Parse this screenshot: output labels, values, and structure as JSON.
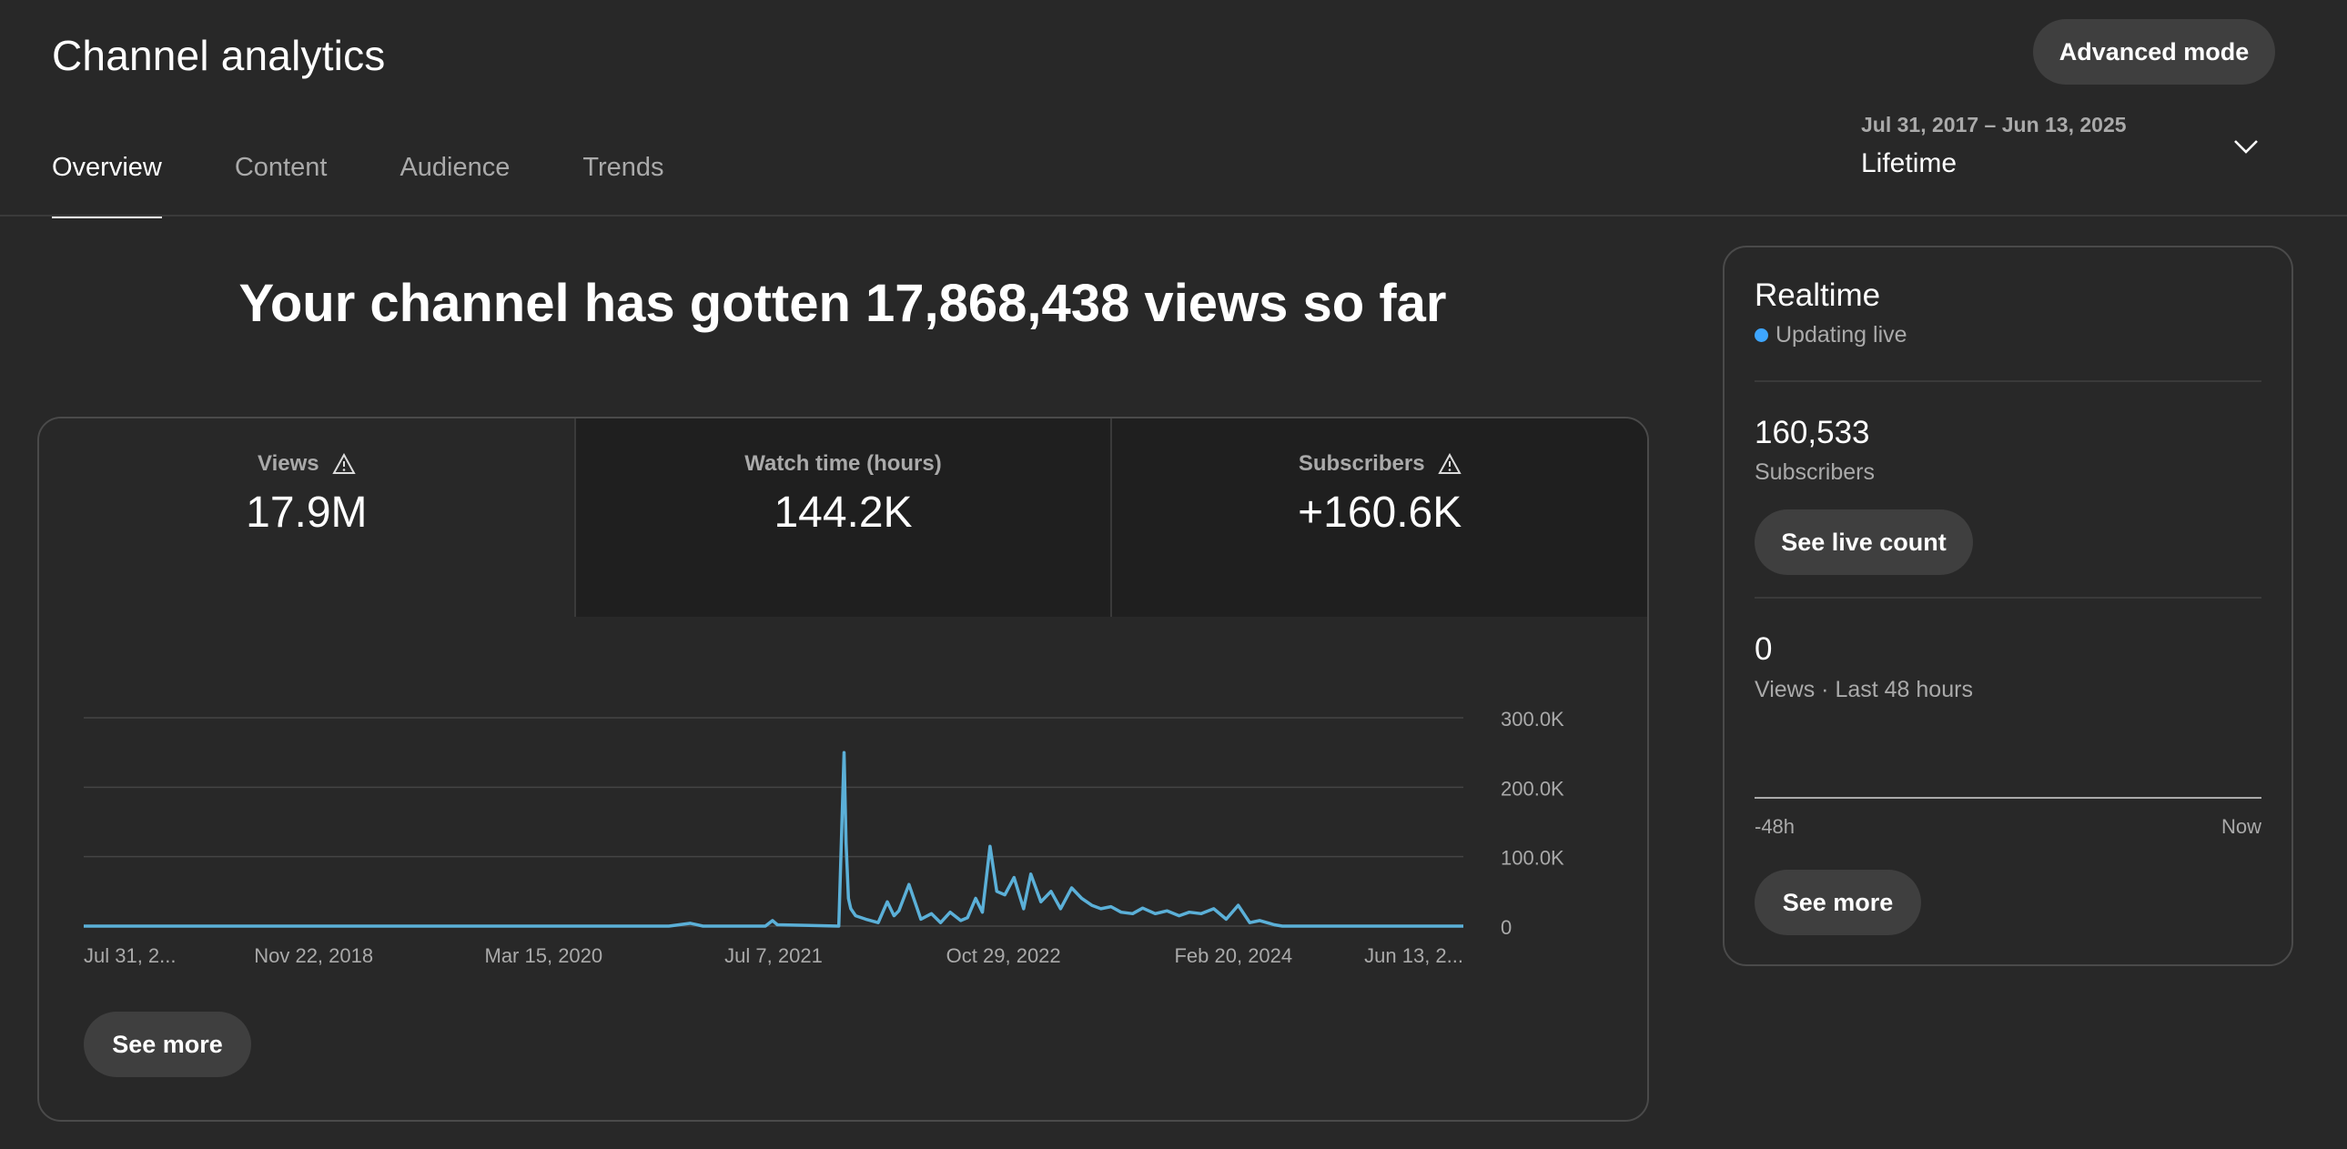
{
  "header": {
    "title": "Channel analytics",
    "advanced_mode": "Advanced mode"
  },
  "tabs": [
    {
      "label": "Overview",
      "active": true
    },
    {
      "label": "Content"
    },
    {
      "label": "Audience"
    },
    {
      "label": "Trends"
    }
  ],
  "date_picker": {
    "range": "Jul 31, 2017 – Jun 13, 2025",
    "label": "Lifetime",
    "icon": "chevron-down-icon"
  },
  "headline": "Your channel has gotten 17,868,438 views so far",
  "metrics": [
    {
      "label": "Views",
      "value": "17.9M",
      "warning": true
    },
    {
      "label": "Watch time (hours)",
      "value": "144.2K",
      "warning": false
    },
    {
      "label": "Subscribers",
      "value": "+160.6K",
      "warning": true
    }
  ],
  "chart_data": {
    "type": "line",
    "series": [
      {
        "color": "#5bb0d8",
        "x": [
          "2017-07-31",
          "2020-12-01",
          "2021-01-15",
          "2021-02-10",
          "2021-06-20",
          "2021-07-05",
          "2021-07-15",
          "2021-11-20",
          "2021-12-01",
          "2021-12-05",
          "2021-12-10",
          "2021-12-15",
          "2021-12-25",
          "2022-01-15",
          "2022-02-10",
          "2022-03-01",
          "2022-03-15",
          "2022-03-25",
          "2022-04-15",
          "2022-05-10",
          "2022-06-01",
          "2022-06-20",
          "2022-07-10",
          "2022-08-01",
          "2022-08-15",
          "2022-09-01",
          "2022-09-15",
          "2022-10-01",
          "2022-10-15",
          "2022-11-01",
          "2022-11-20",
          "2022-12-10",
          "2022-12-25",
          "2023-01-15",
          "2023-02-05",
          "2023-02-25",
          "2023-03-20",
          "2023-04-10",
          "2023-05-01",
          "2023-05-20",
          "2023-06-10",
          "2023-07-01",
          "2023-07-25",
          "2023-08-15",
          "2023-09-10",
          "2023-10-05",
          "2023-10-30",
          "2023-11-20",
          "2023-12-15",
          "2024-01-10",
          "2024-02-05",
          "2024-03-01",
          "2024-03-25",
          "2024-04-15",
          "2024-05-15",
          "2024-06-01",
          "2025-06-13"
        ],
        "values": [
          0,
          0,
          4000,
          0,
          0,
          8000,
          2000,
          0,
          250000,
          120000,
          40000,
          25000,
          15000,
          10000,
          5000,
          35000,
          15000,
          22000,
          60000,
          10000,
          18000,
          5000,
          20000,
          8000,
          12000,
          40000,
          20000,
          115000,
          50000,
          45000,
          70000,
          25000,
          75000,
          35000,
          50000,
          25000,
          55000,
          40000,
          30000,
          25000,
          28000,
          20000,
          18000,
          26000,
          18000,
          22000,
          15000,
          20000,
          18000,
          25000,
          10000,
          30000,
          5000,
          8000,
          2000,
          0,
          0
        ]
      }
    ],
    "x_ticks": [
      "Jul 31, 2...",
      "Nov 22, 2018",
      "Mar 15, 2020",
      "Jul 7, 2021",
      "Oct 29, 2022",
      "Feb 20, 2024",
      "Jun 13, 2..."
    ],
    "y_ticks": [
      "0",
      "100.0K",
      "200.0K",
      "300.0K"
    ],
    "ylim": [
      0,
      300000
    ],
    "xlim": [
      "2017-07-31",
      "2025-06-13"
    ],
    "grid": true
  },
  "chart_card": {
    "see_more": "See more"
  },
  "realtime": {
    "title": "Realtime",
    "live": "Updating live",
    "subscribers_value": "160,533",
    "subscribers_label": "Subscribers",
    "see_live_count": "See live count",
    "views_value": "0",
    "views_label": "Views · Last 48 hours",
    "axis_start": "-48h",
    "axis_end": "Now",
    "see_more": "See more"
  }
}
